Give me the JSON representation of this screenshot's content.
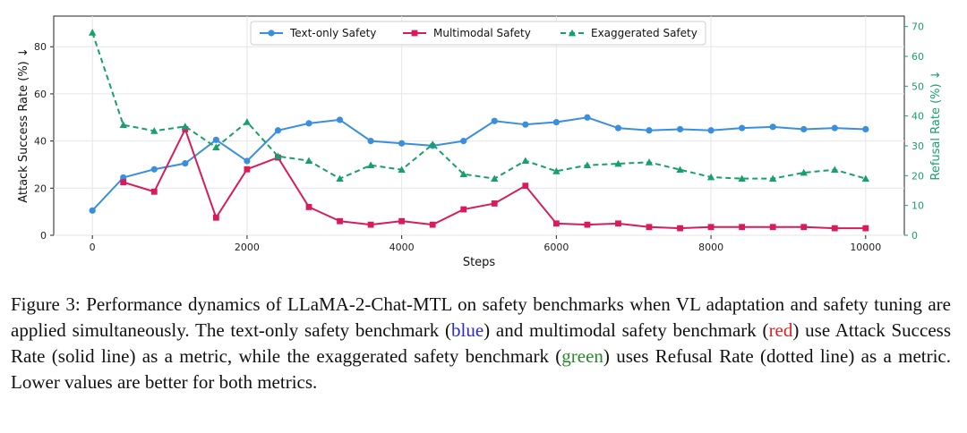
{
  "chart_data": {
    "type": "line",
    "xlabel": "Steps",
    "ylabel_left": "Attack Success Rate (%) ↓",
    "ylabel_right": "Refusal Rate (%) ↓",
    "xlim": [
      -500,
      10500
    ],
    "ylim_left": [
      0,
      93
    ],
    "ylim_right": [
      0,
      73.5
    ],
    "xticks": [
      0,
      2000,
      4000,
      6000,
      8000,
      10000
    ],
    "yticks_left": [
      0,
      20,
      40,
      60,
      80
    ],
    "yticks_right": [
      0,
      10,
      20,
      30,
      40,
      50,
      60,
      70
    ],
    "x": [
      0,
      400,
      800,
      1200,
      1600,
      2000,
      2400,
      2800,
      3200,
      3600,
      4000,
      4400,
      4800,
      5200,
      5600,
      6000,
      6400,
      6800,
      7200,
      7600,
      8000,
      8400,
      8800,
      9200,
      9600,
      10000
    ],
    "series": [
      {
        "name": "Text-only Safety",
        "axis": "left",
        "color": "#3a8ede",
        "style": "solid",
        "marker": "circle",
        "values": [
          10.5,
          24.5,
          28,
          30.5,
          40.5,
          31.5,
          44.5,
          47.5,
          49,
          40,
          39,
          38,
          40,
          48.5,
          47,
          48,
          50,
          45.5,
          44.5,
          45,
          44.5,
          45.5,
          46,
          45,
          45.5,
          45
        ]
      },
      {
        "name": "Multimodal Safety",
        "axis": "left",
        "color": "#d81b5a",
        "style": "solid",
        "marker": "square",
        "values": [
          null,
          22.5,
          18.5,
          45,
          7.5,
          28,
          33,
          12,
          6,
          4.5,
          6,
          4.5,
          11,
          13.5,
          21,
          5,
          4.5,
          5,
          3.5,
          3,
          3.5,
          3.5,
          3.5,
          3.5,
          3,
          3
        ]
      },
      {
        "name": "Exaggerated Safety",
        "axis": "right",
        "color": "#17a06a",
        "style": "dashed",
        "marker": "triangle",
        "values": [
          68,
          37,
          35,
          36.5,
          29.5,
          38,
          26.5,
          25,
          19,
          23.5,
          22,
          30.5,
          20.5,
          19,
          25,
          21.5,
          23.5,
          24,
          24.5,
          22,
          19.5,
          19,
          19,
          21,
          22,
          19
        ]
      }
    ],
    "legend_position": "top-center",
    "grid": true
  },
  "caption": {
    "part1": "Figure 3: Performance dynamics of LLaMA-2-Chat-MTL on safety benchmarks when VL adaptation and safety tuning are applied simultaneously. The text-only safety benchmark (",
    "blue": "blue",
    "part2": ") and multimodal safety benchmark (",
    "red": "red",
    "part3": ") use Attack Success Rate (solid line) as a metric, while the exaggerated safety benchmark (",
    "green": "green",
    "part4": ") uses Refusal Rate (dotted line) as a metric. Lower values are better for both metrics."
  }
}
